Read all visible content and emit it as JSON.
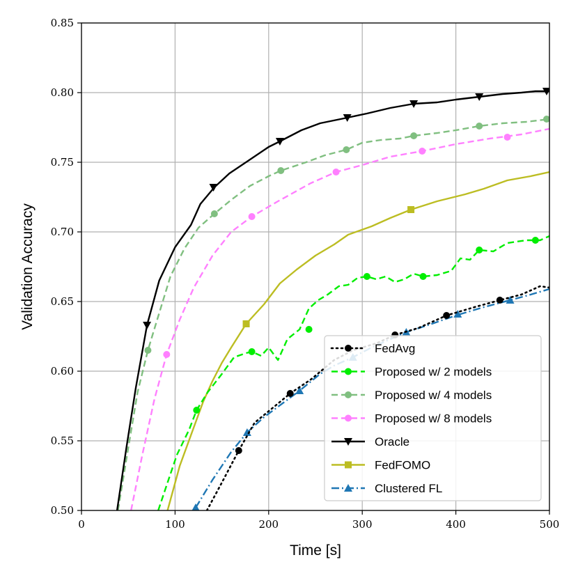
{
  "chart_data": {
    "type": "line",
    "title": "",
    "xlabel": "Time [s]",
    "ylabel": "Validation Accuracy",
    "xlim": [
      0,
      500
    ],
    "ylim": [
      0.5,
      0.85
    ],
    "xticks": [
      0,
      100,
      200,
      300,
      400,
      500
    ],
    "xtick_labels": [
      "0",
      "100",
      "200",
      "300",
      "400",
      "500"
    ],
    "yticks": [
      0.5,
      0.55,
      0.6,
      0.65,
      0.7,
      0.75,
      0.8,
      0.85
    ],
    "ytick_labels": [
      "0.50",
      "0.55",
      "0.60",
      "0.65",
      "0.70",
      "0.75",
      "0.80",
      "0.85"
    ],
    "grid": true,
    "legend_position": "lower-right",
    "series": [
      {
        "name": "FedAvg",
        "color": "#000000",
        "dash": "dotted",
        "marker": "circle",
        "x": [
          134,
          150,
          168,
          185,
          205,
          223,
          245,
          270,
          290,
          315,
          335,
          360,
          390,
          420,
          447,
          470,
          490,
          500
        ],
        "y": [
          0.5,
          0.52,
          0.543,
          0.563,
          0.574,
          0.584,
          0.594,
          0.608,
          0.615,
          0.62,
          0.626,
          0.631,
          0.64,
          0.646,
          0.651,
          0.655,
          0.661,
          0.66
        ],
        "marker_x": [
          168,
          223,
          335,
          390,
          447
        ],
        "marker_y": [
          0.543,
          0.584,
          0.626,
          0.64,
          0.651
        ]
      },
      {
        "name": "Proposed w/ 2 models",
        "color": "#00ee00",
        "dash": "dashed",
        "marker": "circle",
        "x": [
          82,
          92,
          102,
          115,
          123,
          135,
          150,
          163,
          176,
          182,
          192,
          200,
          210,
          220,
          233,
          243,
          253,
          263,
          275,
          285,
          295,
          305,
          315,
          325,
          335,
          345,
          355,
          365,
          380,
          395,
          405,
          415,
          425,
          440,
          455,
          475,
          490,
          500
        ],
        "y": [
          0.5,
          0.52,
          0.54,
          0.558,
          0.572,
          0.585,
          0.598,
          0.61,
          0.613,
          0.614,
          0.611,
          0.617,
          0.608,
          0.623,
          0.63,
          0.645,
          0.651,
          0.655,
          0.661,
          0.662,
          0.667,
          0.668,
          0.666,
          0.668,
          0.664,
          0.666,
          0.67,
          0.668,
          0.669,
          0.672,
          0.681,
          0.68,
          0.687,
          0.686,
          0.692,
          0.694,
          0.694,
          0.697
        ],
        "marker_x": [
          123,
          182,
          243,
          305,
          365,
          425,
          485
        ],
        "marker_y": [
          0.572,
          0.614,
          0.63,
          0.668,
          0.668,
          0.687,
          0.694
        ]
      },
      {
        "name": "Proposed w/ 4 models",
        "color": "#80bf80",
        "dash": "dashed",
        "marker": "circle",
        "x": [
          39,
          50,
          60,
          71,
          80,
          95,
          110,
          125,
          142,
          160,
          180,
          200,
          213,
          240,
          260,
          283,
          300,
          320,
          340,
          355,
          380,
          400,
          425,
          450,
          475,
          500
        ],
        "y": [
          0.5,
          0.545,
          0.585,
          0.615,
          0.635,
          0.668,
          0.688,
          0.703,
          0.713,
          0.723,
          0.733,
          0.74,
          0.744,
          0.75,
          0.755,
          0.759,
          0.764,
          0.766,
          0.767,
          0.769,
          0.771,
          0.773,
          0.776,
          0.778,
          0.779,
          0.781
        ],
        "marker_x": [
          71,
          142,
          213,
          283,
          355,
          425,
          497
        ],
        "marker_y": [
          0.615,
          0.713,
          0.744,
          0.759,
          0.769,
          0.776,
          0.781
        ]
      },
      {
        "name": "Proposed w/ 8 models",
        "color": "#ff80ff",
        "dash": "dashed",
        "marker": "circle",
        "x": [
          53,
          65,
          78,
          91,
          105,
          120,
          140,
          160,
          182,
          210,
          245,
          272,
          300,
          330,
          364,
          400,
          436,
          470,
          500
        ],
        "y": [
          0.5,
          0.54,
          0.58,
          0.612,
          0.637,
          0.66,
          0.683,
          0.7,
          0.711,
          0.722,
          0.735,
          0.743,
          0.748,
          0.754,
          0.758,
          0.763,
          0.767,
          0.77,
          0.774
        ],
        "marker_x": [
          91,
          182,
          272,
          364,
          455
        ],
        "marker_y": [
          0.612,
          0.711,
          0.743,
          0.758,
          0.768
        ]
      },
      {
        "name": "Oracle",
        "color": "#000000",
        "dash": "solid",
        "marker": "triangle-down",
        "x": [
          38,
          48,
          58,
          70,
          83,
          100,
          117,
          127,
          142,
          158,
          178,
          200,
          212,
          235,
          255,
          284,
          305,
          330,
          355,
          380,
          400,
          425,
          450,
          470,
          485,
          500
        ],
        "y": [
          0.5,
          0.545,
          0.588,
          0.633,
          0.665,
          0.689,
          0.705,
          0.72,
          0.732,
          0.742,
          0.751,
          0.761,
          0.765,
          0.773,
          0.778,
          0.782,
          0.785,
          0.789,
          0.792,
          0.793,
          0.795,
          0.797,
          0.799,
          0.8,
          0.801,
          0.801
        ],
        "marker_x": [
          70,
          141,
          212,
          284,
          355,
          425,
          497
        ],
        "marker_y": [
          0.633,
          0.732,
          0.765,
          0.782,
          0.792,
          0.797,
          0.801
        ]
      },
      {
        "name": "FedFOMO",
        "color": "#bcbd22",
        "dash": "solid",
        "marker": "square",
        "x": [
          92,
          105,
          118,
          130,
          140,
          150,
          160,
          176,
          195,
          212,
          230,
          250,
          270,
          285,
          310,
          330,
          352,
          380,
          410,
          430,
          455,
          480,
          500
        ],
        "y": [
          0.5,
          0.532,
          0.556,
          0.578,
          0.593,
          0.606,
          0.617,
          0.634,
          0.648,
          0.663,
          0.673,
          0.683,
          0.691,
          0.698,
          0.704,
          0.71,
          0.716,
          0.722,
          0.727,
          0.731,
          0.737,
          0.74,
          0.743
        ],
        "marker_x": [
          176,
          352
        ],
        "marker_y": [
          0.634,
          0.716
        ]
      },
      {
        "name": "Clustered FL",
        "color": "#1f77b4",
        "dash": "dashdot",
        "marker": "triangle-up",
        "x": [
          122,
          140,
          160,
          177,
          195,
          215,
          233,
          255,
          270,
          290,
          310,
          330,
          347,
          370,
          400,
          430,
          458,
          480,
          500
        ],
        "y": [
          0.502,
          0.522,
          0.542,
          0.556,
          0.567,
          0.577,
          0.586,
          0.598,
          0.604,
          0.61,
          0.617,
          0.623,
          0.628,
          0.633,
          0.64,
          0.646,
          0.651,
          0.655,
          0.659
        ],
        "marker_x": [
          122,
          177,
          233,
          290,
          347,
          402,
          458
        ],
        "marker_y": [
          0.502,
          0.556,
          0.586,
          0.61,
          0.628,
          0.641,
          0.651
        ]
      }
    ]
  }
}
